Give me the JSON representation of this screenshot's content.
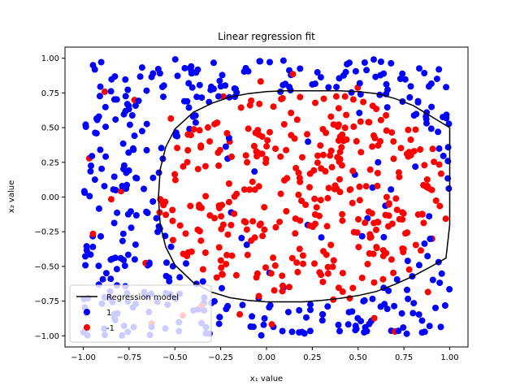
{
  "chart_data": {
    "type": "scatter",
    "title": "Linear regression fit",
    "xlabel": "x₁ value",
    "ylabel": "x₂ value",
    "xlim": [
      -1.1,
      1.1
    ],
    "ylim": [
      -1.08,
      1.08
    ],
    "xticks": [
      "−1.00",
      "−0.75",
      "−0.50",
      "−0.25",
      "0.00",
      "0.25",
      "0.50",
      "0.75",
      "1.00"
    ],
    "yticks": [
      "−1.00",
      "−0.75",
      "−0.50",
      "−0.25",
      "0.00",
      "0.25",
      "0.50",
      "0.75",
      "1.00"
    ],
    "xtick_values": [
      -1.0,
      -0.75,
      -0.5,
      -0.25,
      0.0,
      0.25,
      0.5,
      0.75,
      1.0
    ],
    "ytick_values": [
      -1.0,
      -0.75,
      -0.5,
      -0.25,
      0.0,
      0.25,
      0.5,
      0.75,
      1.0
    ],
    "grid": false,
    "legend_position": "lower-left",
    "legend": [
      {
        "label": "Regression model",
        "kind": "line",
        "color": "#000000"
      },
      {
        "label": "1",
        "kind": "marker",
        "color": "#0000ff"
      },
      {
        "label": "-1",
        "kind": "marker",
        "color": "#ff0000"
      }
    ],
    "boundary": {
      "name": "Regression model",
      "color": "#000000",
      "x": [
        1.0,
        0.9,
        0.8,
        0.7,
        0.6,
        0.5,
        0.4,
        0.3,
        0.2,
        0.1,
        0.0,
        -0.1,
        -0.2,
        -0.3,
        -0.4,
        -0.5,
        -0.55,
        -0.58,
        -0.59,
        -0.58,
        -0.55,
        -0.5,
        -0.4,
        -0.3,
        -0.2,
        -0.1,
        0.0,
        0.1,
        0.2,
        0.3,
        0.4,
        0.5,
        0.6,
        0.7,
        0.8,
        0.9,
        0.98,
        1.0,
        1.0
      ],
      "y": [
        0.5,
        0.58,
        0.66,
        0.71,
        0.745,
        0.76,
        0.765,
        0.765,
        0.765,
        0.765,
        0.76,
        0.745,
        0.72,
        0.675,
        0.61,
        0.49,
        0.36,
        0.2,
        0.0,
        -0.2,
        -0.36,
        -0.49,
        -0.615,
        -0.685,
        -0.725,
        -0.745,
        -0.755,
        -0.755,
        -0.755,
        -0.745,
        -0.73,
        -0.71,
        -0.68,
        -0.63,
        -0.57,
        -0.5,
        -0.44,
        -0.2,
        0.5
      ]
    },
    "series": [
      {
        "name": "1",
        "color": "#0000ff",
        "n": 340
      },
      {
        "name": "-1",
        "color": "#ff0000",
        "n": 430
      }
    ]
  }
}
